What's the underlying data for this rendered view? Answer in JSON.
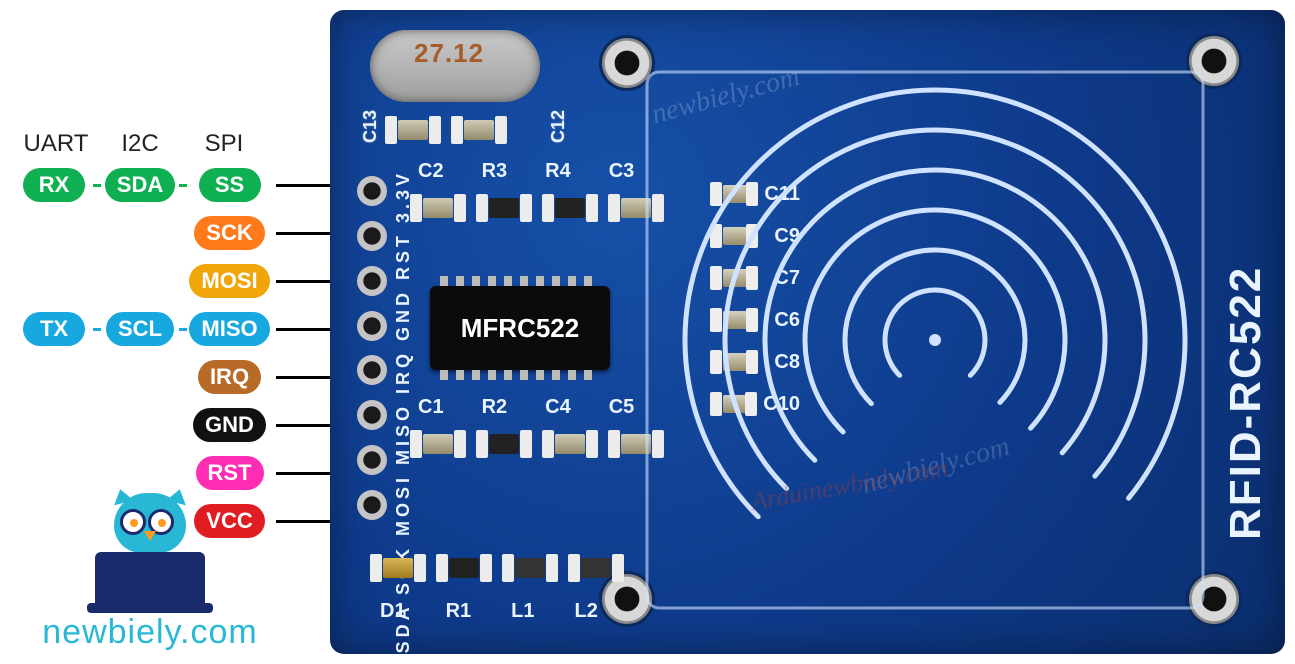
{
  "protocols": {
    "uart": "UART",
    "i2c": "I2C",
    "spi": "SPI"
  },
  "colors": {
    "green": "#0eb051",
    "orange": "#ff7a1a",
    "yellow": "#f0a609",
    "cyan": "#17a8e0",
    "brown": "#b86a28",
    "black": "#111111",
    "magenta": "#ff2db4",
    "red": "#e11d24",
    "connector": "#063",
    "pcb_bg": "#0e3a8a",
    "silk": "#e9f4ff",
    "hole_ring": "#d8d8d8"
  },
  "pins": [
    {
      "uart": "RX",
      "i2c": "SDA",
      "spi": "SS",
      "uart_c": "green",
      "i2c_c": "green",
      "spi_c": "green"
    },
    {
      "uart": "",
      "i2c": "",
      "spi": "SCK",
      "spi_c": "orange"
    },
    {
      "uart": "",
      "i2c": "",
      "spi": "MOSI",
      "spi_c": "yellow"
    },
    {
      "uart": "TX",
      "i2c": "SCL",
      "spi": "MISO",
      "uart_c": "cyan",
      "i2c_c": "cyan",
      "spi_c": "cyan"
    },
    {
      "uart": "",
      "i2c": "",
      "spi": "IRQ",
      "spi_c": "brown"
    },
    {
      "uart": "",
      "i2c": "",
      "spi": "GND",
      "spi_c": "black"
    },
    {
      "uart": "",
      "i2c": "",
      "spi": "RST",
      "spi_c": "magenta"
    },
    {
      "uart": "",
      "i2c": "",
      "spi": "VCC",
      "spi_c": "red"
    }
  ],
  "brand": "newbiely.com",
  "board": {
    "name": "RFID-RC522",
    "chip": "MFRC522",
    "crystal": "27.12",
    "silk_pins_label": "SDA SCK MOSI MISO IRQ GND RST 3.3V",
    "bottom_row": [
      "D1",
      "R1",
      "L1",
      "L2"
    ],
    "mid_row1": [
      "C2",
      "R3",
      "R4",
      "C3"
    ],
    "mid_row2": [
      "C1",
      "R2",
      "C4",
      "C5"
    ],
    "top_pair": [
      "C13",
      "C12"
    ],
    "right_caps": [
      "C11",
      "C9",
      "C7",
      "C6",
      "C8",
      "C10"
    ]
  },
  "watermark": {
    "wm1": "newbiely.com",
    "wm2": "newbiely.com",
    "wm3": "Arduinewbiely.com"
  },
  "antenna": {
    "rings": 6,
    "stroke": "#cfe2ff",
    "stroke_width": 5,
    "center_dot": true
  }
}
